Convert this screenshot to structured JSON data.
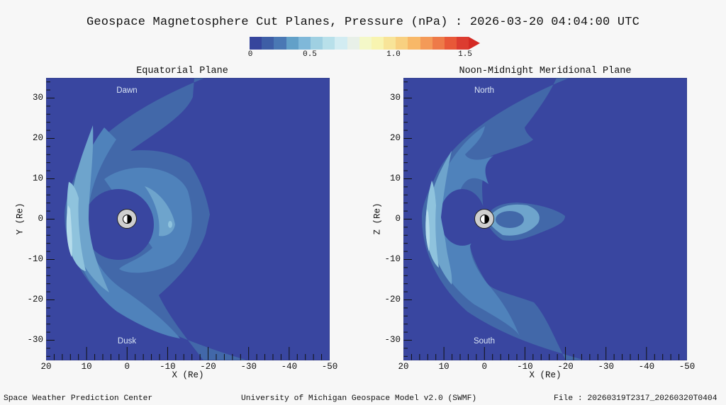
{
  "title": "Geospace Magnetosphere Cut Planes, Pressure (nPa) : 2026-03-20 04:04:00 UTC",
  "colorbar": {
    "label_ticks": [
      "0",
      "0.5",
      "1.0",
      "1.5"
    ],
    "tick_values": [
      0,
      0.5,
      1.0,
      1.5
    ],
    "range": [
      0,
      1.5
    ],
    "colors": [
      "#36459c",
      "#3e5ea6",
      "#4a78b4",
      "#62a0c8",
      "#7fb8d9",
      "#9fd0e2",
      "#b8e0ea",
      "#d2ecf2",
      "#e8f0e8",
      "#f4f8c8",
      "#f8f4b0",
      "#f8e498",
      "#f8d080",
      "#f8b868",
      "#f49a58",
      "#ee7a48",
      "#e85838",
      "#dc3c30"
    ],
    "overflow_color": "#d42a24"
  },
  "chart_data": [
    {
      "type": "heatmap",
      "title": "Equatorial Plane",
      "xlabel": "X (Re)",
      "ylabel": "Y (Re)",
      "xlim": [
        20,
        -50
      ],
      "ylim": [
        -35,
        35
      ],
      "xticks": [
        "20",
        "10",
        "0",
        "-10",
        "-20",
        "-30",
        "-40",
        "-50"
      ],
      "yticks": [
        "30",
        "20",
        "10",
        "0",
        "-10",
        "-20",
        "-30"
      ],
      "annotations": {
        "top": "Dawn",
        "bottom": "Dusk"
      },
      "field": "Pressure (nPa)"
    },
    {
      "type": "heatmap",
      "title": "Noon-Midnight Meridional Plane",
      "xlabel": "X (Re)",
      "ylabel": "Z (Re)",
      "xlim": [
        20,
        -50
      ],
      "ylim": [
        -35,
        35
      ],
      "xticks": [
        "20",
        "10",
        "0",
        "-10",
        "-20",
        "-30",
        "-40",
        "-50"
      ],
      "yticks": [
        "30",
        "20",
        "10",
        "0",
        "-10",
        "-20",
        "-30"
      ],
      "annotations": {
        "top": "North",
        "bottom": "South"
      },
      "field": "Pressure (nPa)"
    }
  ],
  "footer": {
    "left": "Space Weather Prediction Center",
    "center": "University of Michigan Geospace Model v2.0 (SWMF)",
    "right": "File : 20260319T2317_20260320T0404"
  }
}
